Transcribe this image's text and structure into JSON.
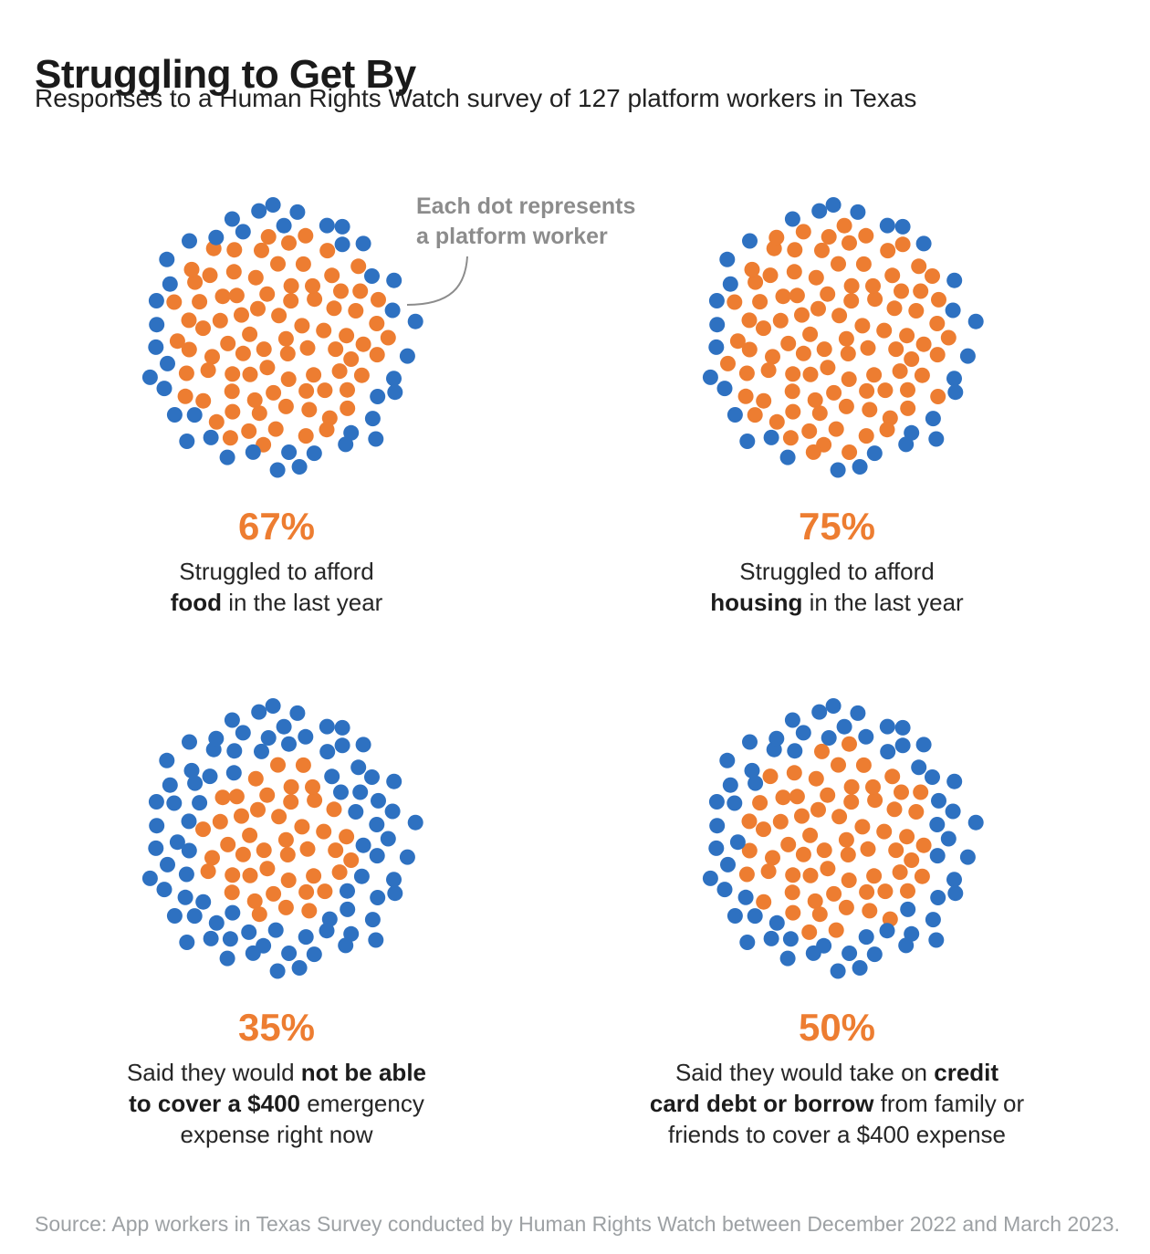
{
  "chart_data": {
    "type": "unit-dot-cluster",
    "title": "Struggling to Get By",
    "subtitle": "Responses to a Human Rights Watch survey of 127 platform workers in Texas",
    "total_units": 127,
    "unit_label": "platform worker",
    "annotation": {
      "lines": [
        "Each dot represents",
        "a platform worker"
      ]
    },
    "colors": {
      "affected": "#ED7D31",
      "other": "#2E71C1",
      "annotation_gray": "#8c8c8c",
      "source_gray": "#9da1a4"
    },
    "clusters": [
      {
        "id": "food",
        "percent": 67,
        "percent_label": "67%",
        "affected_units": 85,
        "caption_lines": [
          [
            {
              "t": "Struggled to afford",
              "b": false
            }
          ],
          [
            {
              "t": "food",
              "b": true
            },
            {
              "t": " in the last year",
              "b": false
            }
          ]
        ]
      },
      {
        "id": "housing",
        "percent": 75,
        "percent_label": "75%",
        "affected_units": 95,
        "caption_lines": [
          [
            {
              "t": "Struggled to afford",
              "b": false
            }
          ],
          [
            {
              "t": "housing",
              "b": true
            },
            {
              "t": " in the last year",
              "b": false
            }
          ]
        ]
      },
      {
        "id": "emergency-expense",
        "percent": 35,
        "percent_label": "35%",
        "affected_units": 44,
        "caption_lines": [
          [
            {
              "t": "Said they would ",
              "b": false
            },
            {
              "t": "not be able",
              "b": true
            }
          ],
          [
            {
              "t": "to cover a $400",
              "b": true
            },
            {
              "t": " emergency",
              "b": false
            }
          ],
          [
            {
              "t": "expense right now",
              "b": false
            }
          ]
        ]
      },
      {
        "id": "credit-card-debt",
        "percent": 50,
        "percent_label": "50%",
        "affected_units": 64,
        "caption_lines": [
          [
            {
              "t": "Said they would take on ",
              "b": false
            },
            {
              "t": "credit",
              "b": true
            }
          ],
          [
            {
              "t": "card debt or borrow",
              "b": true
            },
            {
              "t": " from family or",
              "b": false
            }
          ],
          [
            {
              "t": "friends to cover a $400 expense",
              "b": false
            }
          ]
        ]
      }
    ]
  },
  "source": "Source: App workers in Texas Survey conducted by Human Rights Watch between December 2022 and March 2023."
}
